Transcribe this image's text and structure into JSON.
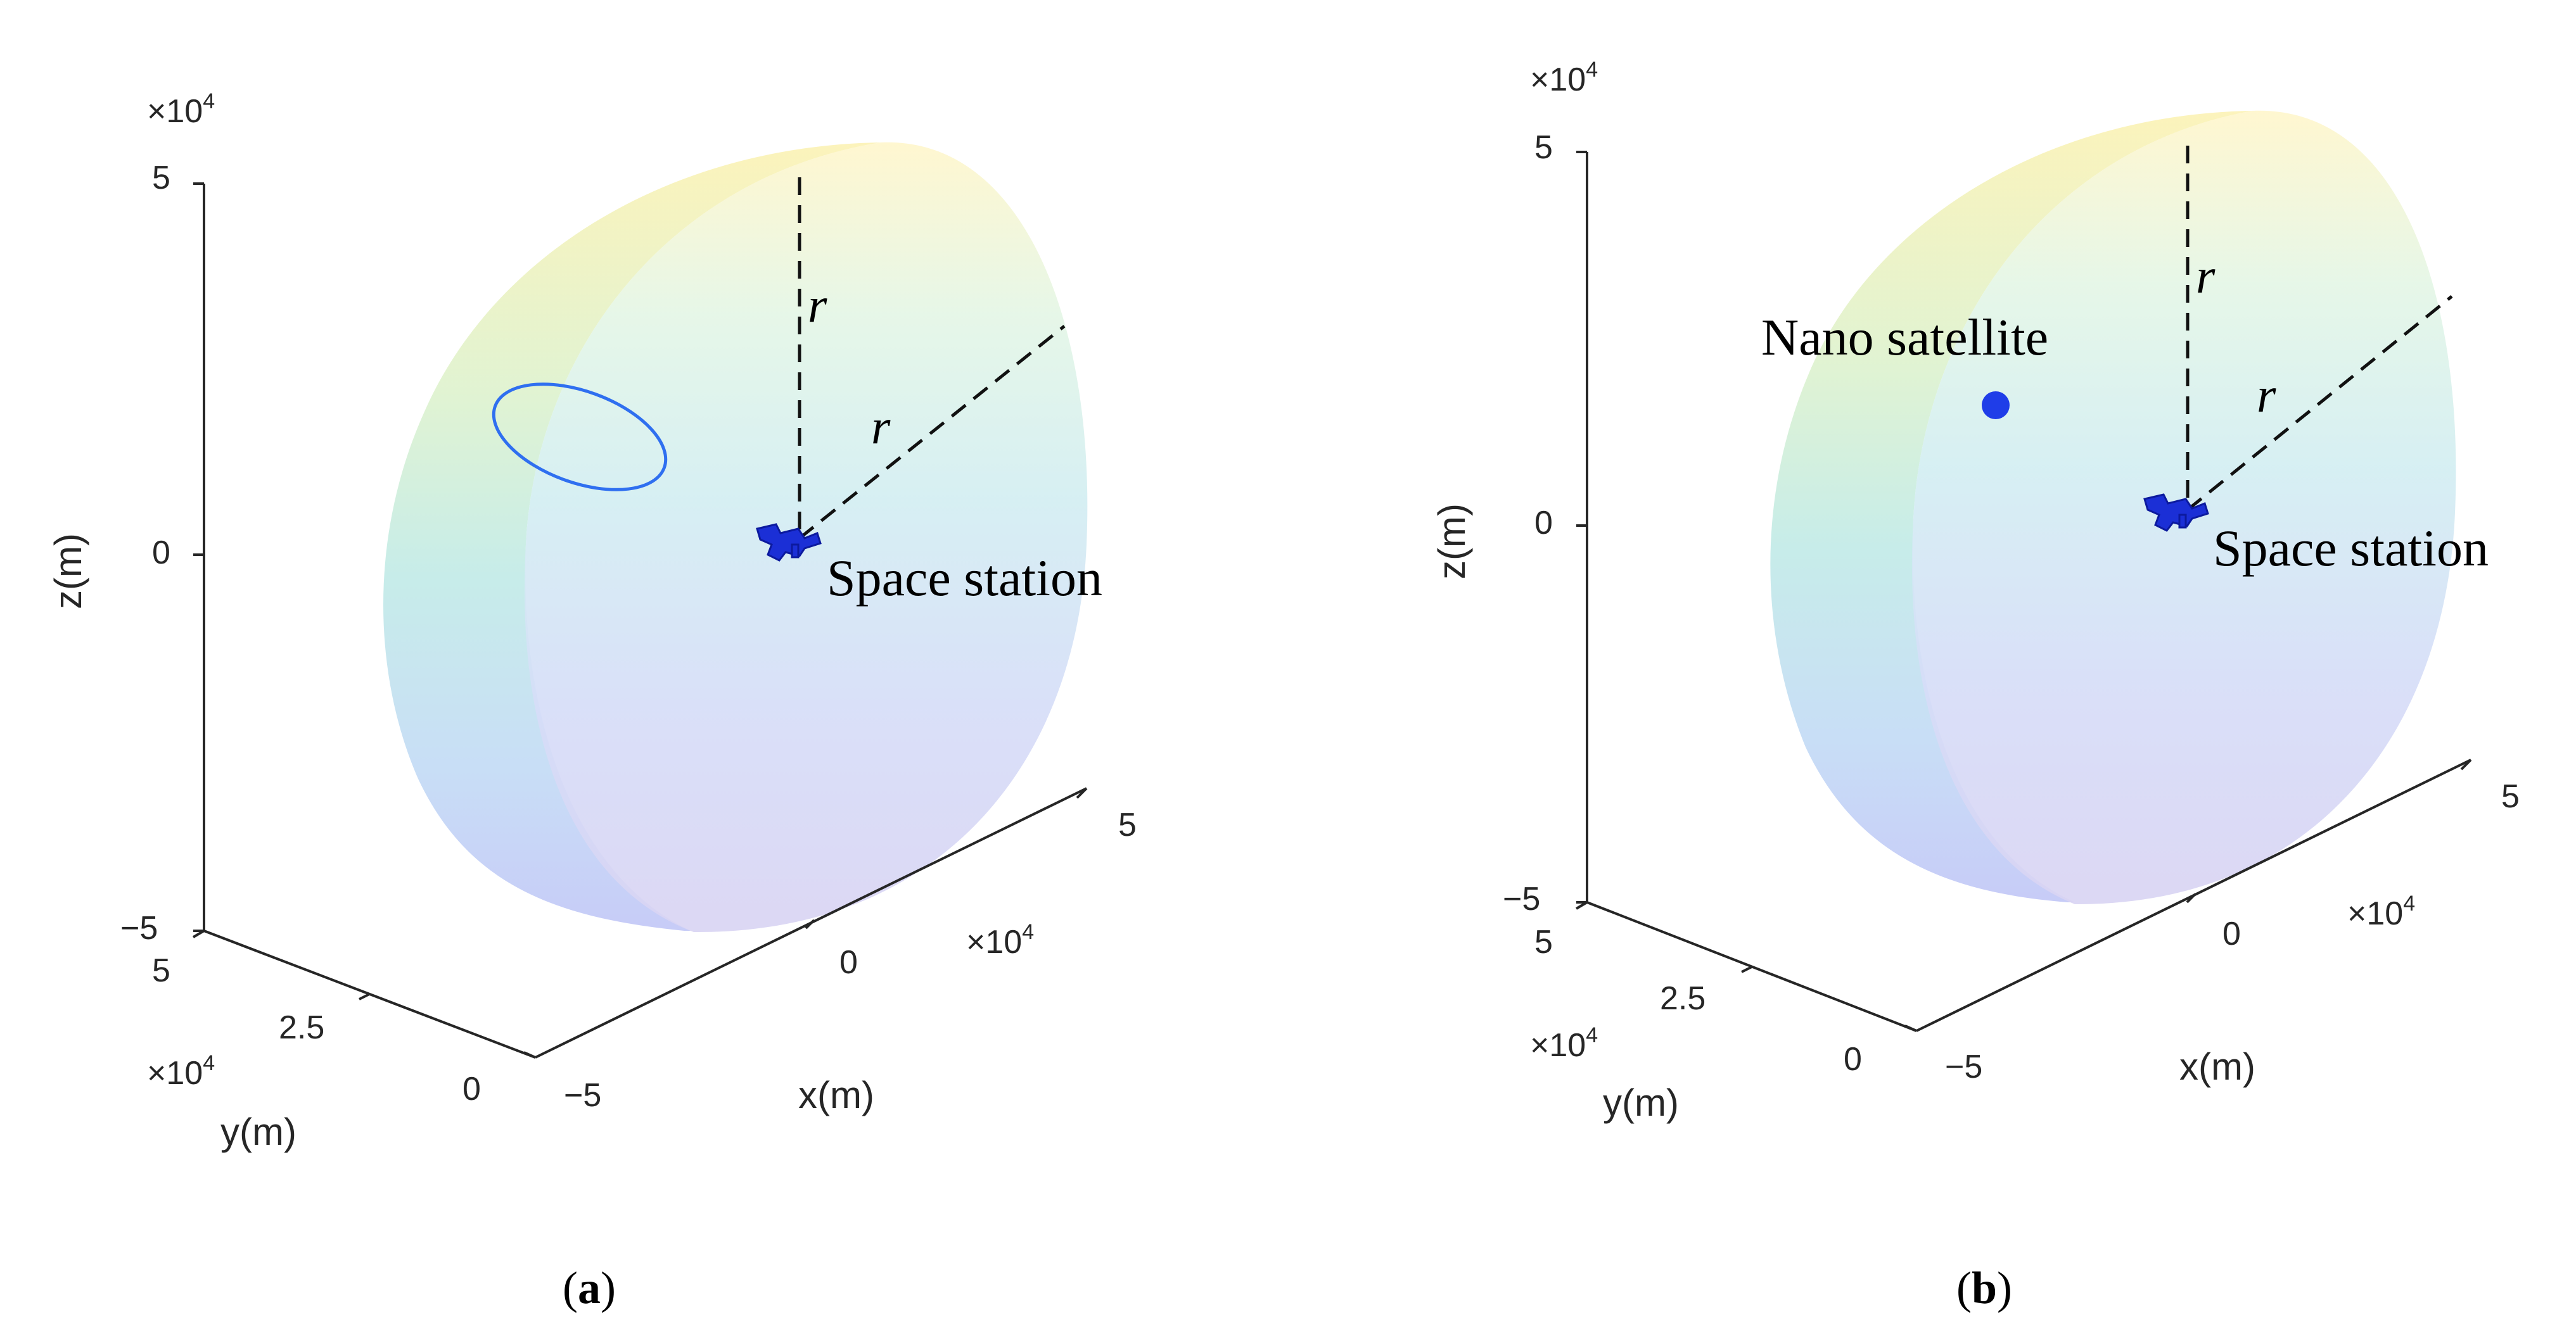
{
  "panels": [
    {
      "caption": "a",
      "axes": {
        "z_label": "z(m)",
        "x_label": "x(m)",
        "y_label": "y(m)",
        "z_ticks": [
          "5",
          "0",
          "−5"
        ],
        "x_ticks": [
          "−5",
          "0",
          "5"
        ],
        "y_ticks": [
          "0",
          "2.5",
          "5"
        ],
        "exponent_base": "×10",
        "exponent_power": "4"
      },
      "annotations": {
        "radius_label": "r",
        "station_label": "Space station"
      },
      "marker": "blue-orbit-ellipse"
    },
    {
      "caption": "b",
      "axes": {
        "z_label": "z(m)",
        "x_label": "x(m)",
        "y_label": "y(m)",
        "z_ticks": [
          "5",
          "0",
          "−5"
        ],
        "x_ticks": [
          "−5",
          "0",
          "5"
        ],
        "y_ticks": [
          "0",
          "2.5",
          "5"
        ],
        "exponent_base": "×10",
        "exponent_power": "4"
      },
      "annotations": {
        "radius_label": "r",
        "station_label": "Space station",
        "satellite_label": "Nano satellite"
      },
      "marker": "blue-dot"
    }
  ],
  "colors": {
    "hemisphere_top": "#fbf0a8",
    "hemisphere_mid": "#bdeede",
    "hemisphere_bottom": "#cdd0f7",
    "station": "#1b2fd6",
    "orbit": "#2f6ff0",
    "satellite": "#1f3de8"
  }
}
